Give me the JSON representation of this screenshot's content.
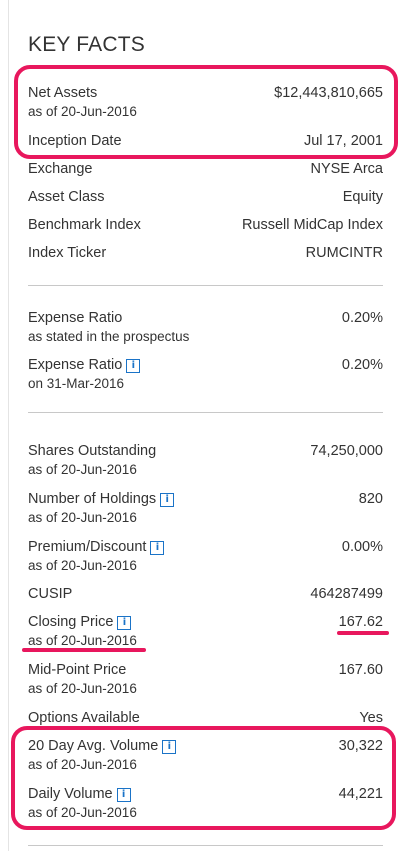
{
  "title": "KEY FACTS",
  "group1": [
    {
      "label": "Net Assets",
      "sub": "as of 20-Jun-2016",
      "value": "$12,443,810,665"
    },
    {
      "label": "Inception Date",
      "value": "Jul 17, 2001"
    },
    {
      "label": "Exchange",
      "value": "NYSE Arca"
    },
    {
      "label": "Asset Class",
      "value": "Equity"
    },
    {
      "label": "Benchmark Index",
      "value": "Russell MidCap Index"
    },
    {
      "label": "Index Ticker",
      "value": "RUMCINTR"
    }
  ],
  "group2": [
    {
      "label": "Expense Ratio",
      "sub": "as stated in the prospectus",
      "value": "0.20%"
    },
    {
      "label": "Expense Ratio",
      "sub": "on 31-Mar-2016",
      "value": "0.20%"
    }
  ],
  "group3": [
    {
      "label": "Shares Outstanding",
      "sub": "as of 20-Jun-2016",
      "value": "74,250,000"
    },
    {
      "label": "Number of Holdings",
      "sub": "as of 20-Jun-2016",
      "value": "820"
    },
    {
      "label": "Premium/Discount",
      "sub": "as of 20-Jun-2016",
      "value": "0.00%"
    },
    {
      "label": "CUSIP",
      "value": "464287499"
    },
    {
      "label": "Closing Price",
      "sub": "as of 20-Jun-2016",
      "value": "167.62"
    },
    {
      "label": "Mid-Point Price",
      "sub": "as of 20-Jun-2016",
      "value": "167.60"
    },
    {
      "label": "Options Available",
      "value": "Yes"
    },
    {
      "label": "20 Day Avg. Volume",
      "sub": "as of 20-Jun-2016",
      "value": "30,322"
    },
    {
      "label": "Daily Volume",
      "sub": "as of 20-Jun-2016",
      "value": "44,221"
    }
  ],
  "info_icon": "i",
  "colors": {
    "highlight": "#e8175d",
    "info": "#1a73c7",
    "text": "#333333",
    "divider": "#c8c8c8"
  }
}
